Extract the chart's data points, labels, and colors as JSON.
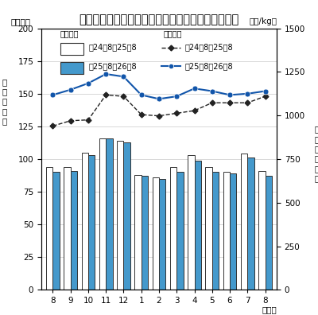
{
  "title": "成牛と畜頭数及び卸売価格（省令）の推移（全国）",
  "xlabel": "（月）",
  "ylabel_left": "（千頭）",
  "ylabel_right": "（円/kg）",
  "left_label": "と畜頭数",
  "right_label": "卸売価格",
  "months": [
    "8",
    "9",
    "10",
    "11",
    "12",
    "1",
    "2",
    "3",
    "4",
    "5",
    "6",
    "7",
    "8"
  ],
  "bar_prev": [
    94,
    94,
    105,
    116,
    114,
    88,
    86,
    94,
    103,
    94,
    90,
    104,
    91
  ],
  "bar_curr": [
    90,
    91,
    103,
    116,
    113,
    87,
    85,
    90,
    99,
    90,
    89,
    101,
    87
  ],
  "line_price_prev": [
    940,
    970,
    975,
    1118,
    1110,
    1005,
    998,
    1013,
    1028,
    1073,
    1073,
    1073,
    1110
  ],
  "line_price_curr": [
    1118,
    1148,
    1185,
    1238,
    1223,
    1118,
    1095,
    1110,
    1155,
    1140,
    1118,
    1125,
    1140
  ],
  "ylim_left": [
    0,
    200
  ],
  "ylim_right": [
    0,
    1500
  ],
  "yticks_left": [
    0,
    25,
    50,
    75,
    100,
    125,
    150,
    175,
    200
  ],
  "yticks_right": [
    0,
    250,
    500,
    750,
    1000,
    1250,
    1500
  ],
  "bar_prev_color": "white",
  "bar_prev_edgecolor": "#333333",
  "bar_curr_color": "#4499cc",
  "bar_curr_edgecolor": "#333333",
  "line_prev_color": "#222222",
  "line_curr_color": "#1155aa",
  "legend_bar_prev": "剈24．8～25．8",
  "legend_bar_curr": "剈25．8～26．8",
  "legend_line_prev": "剈24．8～25．8",
  "legend_line_curr": "剈25．8～26．8",
  "title_fontsize": 10.5,
  "tick_fontsize": 7.5,
  "label_fontsize": 7.5,
  "legend_fontsize": 7.0
}
